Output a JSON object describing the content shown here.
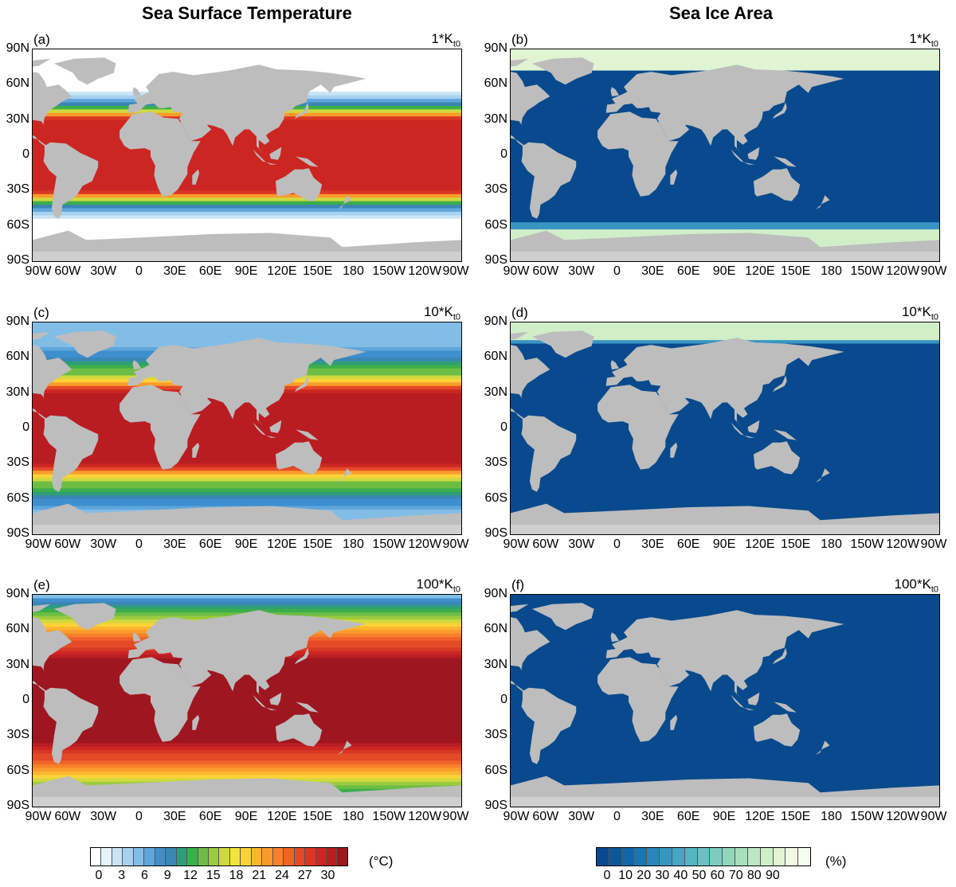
{
  "titles": {
    "left": "Sea Surface Temperature",
    "right": "Sea Ice Area"
  },
  "panels": [
    {
      "label": "(a)",
      "tag_main": "1*K",
      "tag_sub": "t0",
      "field": "sst",
      "level": 1
    },
    {
      "label": "(b)",
      "tag_main": "1*K",
      "tag_sub": "t0",
      "field": "ice",
      "level": 1
    },
    {
      "label": "(c)",
      "tag_main": "10*K",
      "tag_sub": "t0",
      "field": "sst",
      "level": 2
    },
    {
      "label": "(d)",
      "tag_main": "10*K",
      "tag_sub": "t0",
      "field": "ice",
      "level": 2
    },
    {
      "label": "(e)",
      "tag_main": "100*K",
      "tag_sub": "t0",
      "field": "sst",
      "level": 3
    },
    {
      "label": "(f)",
      "tag_main": "100*K",
      "tag_sub": "t0",
      "field": "ice",
      "level": 3
    }
  ],
  "axes": {
    "y_ticks": [
      "90N",
      "60N",
      "30N",
      "0",
      "30S",
      "60S",
      "90S"
    ],
    "x_ticks": [
      "90W",
      "60W",
      "30W",
      "0",
      "30E",
      "60E",
      "90E",
      "120E",
      "150E",
      "180",
      "150W",
      "120W",
      "90W"
    ]
  },
  "colorbars": {
    "sst": {
      "labels": [
        "0",
        "3",
        "6",
        "9",
        "12",
        "15",
        "18",
        "21",
        "24",
        "27",
        "30"
      ],
      "unit": "(°C)",
      "colors": [
        "#ffffff",
        "#e6f3fb",
        "#c8e4f6",
        "#a6d2ef",
        "#82bde6",
        "#5fa6dc",
        "#3e8fcf",
        "#3b86b3",
        "#2e9e7a",
        "#3cae4a",
        "#6cbd45",
        "#9ccb3f",
        "#cfd93e",
        "#f3e33d",
        "#fdd236",
        "#fdb52f",
        "#fb9a2c",
        "#f7802b",
        "#ef6329",
        "#e44a27",
        "#d93725",
        "#cc2623",
        "#b91d22",
        "#9e1620"
      ]
    },
    "ice": {
      "labels": [
        "0",
        "10",
        "20",
        "30",
        "40",
        "50",
        "60",
        "70",
        "80",
        "90"
      ],
      "unit": "(%)",
      "colors": [
        "#084a8d",
        "#0d5799",
        "#1565a5",
        "#1f74b0",
        "#2a85ba",
        "#3895c2",
        "#47a5c6",
        "#56b4c7",
        "#68c2c4",
        "#7ccdc0",
        "#92d6bd",
        "#a8dfbd",
        "#bde7c1",
        "#d0eec8",
        "#e1f4d3",
        "#eff9e4",
        "#f8fcf0"
      ]
    }
  }
}
